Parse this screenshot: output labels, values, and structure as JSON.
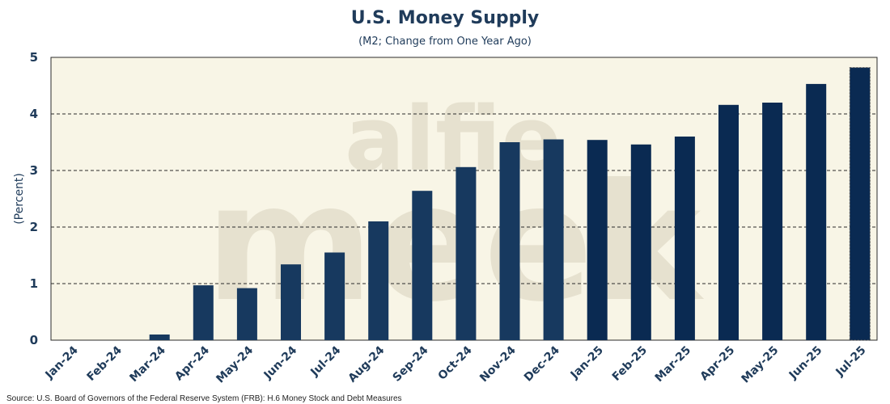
{
  "chart_data": {
    "type": "bar",
    "title": "U.S. Money Supply",
    "subtitle": "(M2; Change from One Year Ago)",
    "ylabel": "(Percent)",
    "xlabel": "",
    "ylim": [
      0,
      5
    ],
    "yticks": [
      0,
      1,
      2,
      3,
      4,
      5
    ],
    "grid": true,
    "categories": [
      "Jan-24",
      "Feb-24",
      "Mar-24",
      "Apr-24",
      "May-24",
      "Jun-24",
      "Jul-24",
      "Aug-24",
      "Sep-24",
      "Oct-24",
      "Nov-24",
      "Dec-24",
      "Jan-25",
      "Feb-25",
      "Mar-25",
      "Apr-25",
      "May-25",
      "Jun-25",
      "Jul-25"
    ],
    "values": [
      0.0,
      0.0,
      0.1,
      0.97,
      0.92,
      1.34,
      1.55,
      2.1,
      2.64,
      3.06,
      3.5,
      3.55,
      3.54,
      3.46,
      3.6,
      4.16,
      4.2,
      4.53,
      4.82
    ],
    "highlight_last": true,
    "source": "Source: U.S. Board of Governors of the Federal Reserve System (FRB): H.6 Money Stock and Debt Measures",
    "watermark": [
      "alfie",
      "meek"
    ],
    "colors": {
      "bar_2024": "#17395f",
      "bar_2025": "#0a2a52",
      "plot_bg": "#f8f5e6",
      "grid": "#2b2b2b",
      "text": "#1f3b5a"
    }
  }
}
